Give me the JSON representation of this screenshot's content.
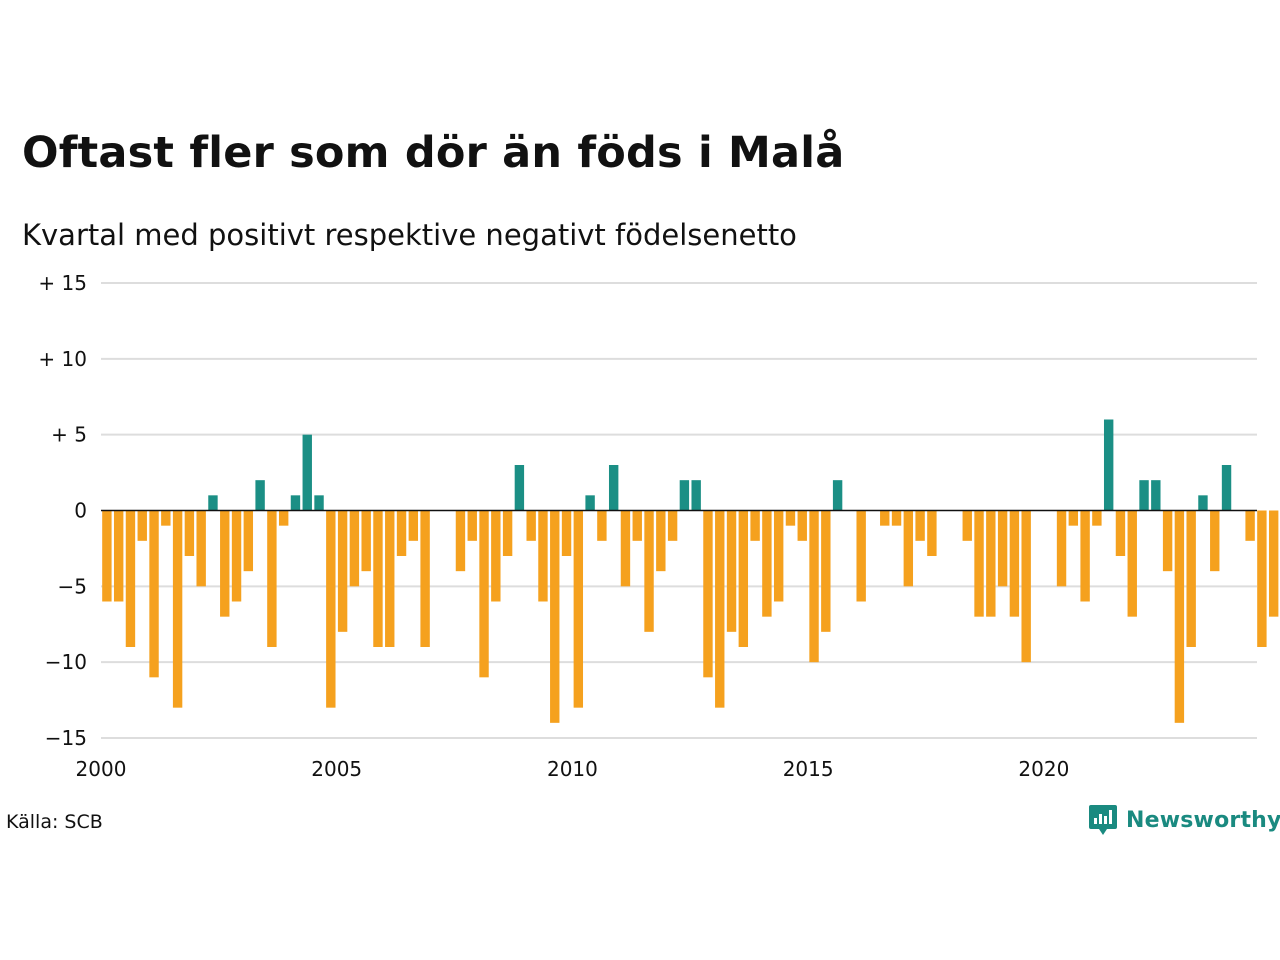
{
  "chart_data": {
    "type": "bar",
    "title": "Oftast fler som dör än föds i Malå",
    "subtitle": "Kvartal med positivt respektive negativt födelsenetto",
    "source": "Källa: SCB",
    "brand": "Newsworthy",
    "ylim": [
      -15,
      15
    ],
    "yticks": [
      15,
      10,
      5,
      0,
      -5,
      -10,
      -15
    ],
    "ytick_labels": [
      "+ 15",
      "+ 10",
      "+  5",
      "0",
      "−5",
      "−10",
      "−15"
    ],
    "xlim": [
      2000,
      2024.5
    ],
    "xticks": [
      2000,
      2005,
      2010,
      2015,
      2020
    ],
    "xtick_labels": [
      "2000",
      "2005",
      "2010",
      "2015",
      "2020"
    ],
    "start_year": 2000,
    "frequency": "quarterly",
    "values": [
      -6,
      -6,
      -9,
      -2,
      -11,
      -1,
      -13,
      -3,
      -5,
      1,
      -7,
      -6,
      -4,
      2,
      -9,
      -1,
      1,
      5,
      1,
      -13,
      -8,
      -5,
      -4,
      -9,
      -9,
      -3,
      -2,
      -9,
      0,
      0,
      -4,
      -2,
      -11,
      -6,
      -3,
      3,
      -2,
      -6,
      -14,
      -3,
      -13,
      1,
      -2,
      3,
      -5,
      -2,
      -8,
      -4,
      -2,
      2,
      2,
      -11,
      -13,
      -8,
      -9,
      -2,
      -7,
      -6,
      -1,
      -2,
      -10,
      -8,
      2,
      0,
      -6,
      0,
      -1,
      -1,
      -5,
      -2,
      -3,
      0,
      0,
      -2,
      -7,
      -7,
      -5,
      -7,
      -10,
      0,
      0,
      -5,
      -1,
      -6,
      -1,
      6,
      -3,
      -7,
      2,
      2,
      -4,
      -14,
      -9,
      1,
      -4,
      3,
      0,
      -2,
      -9,
      -7
    ],
    "colors": {
      "positive": "#1b8f85",
      "negative": "#f5a11e",
      "grid": "#dddddd",
      "zero": "#111111"
    },
    "grid": true
  }
}
